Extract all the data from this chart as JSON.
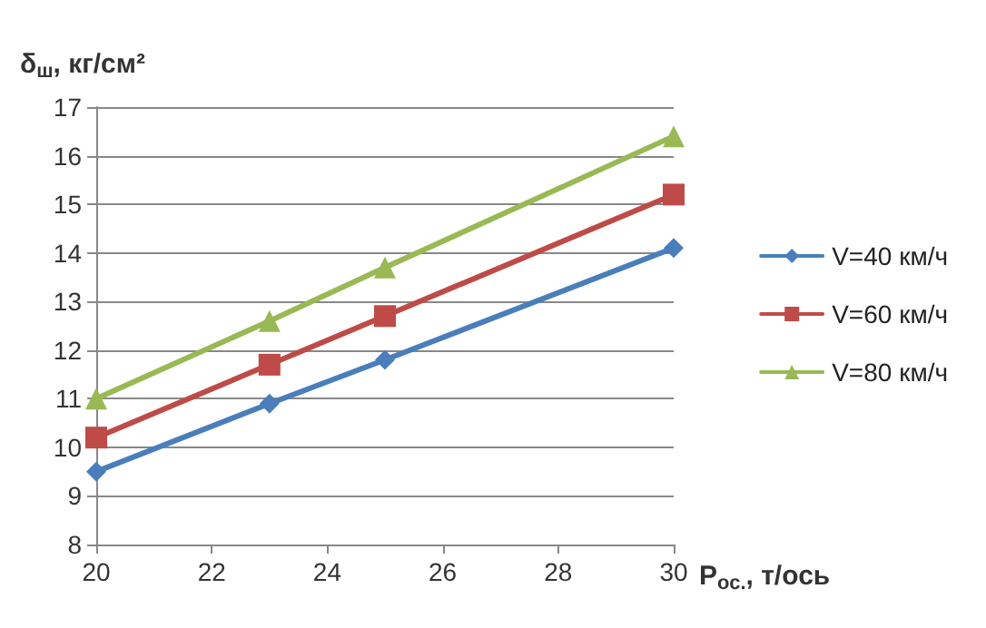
{
  "chart_data": {
    "type": "line",
    "ylabel": "δ$_{ш}$, кг/см²",
    "xlabel": "P$_{ос.}$, т/ось",
    "x": [
      20,
      23,
      25,
      30
    ],
    "xlim": [
      20,
      30
    ],
    "xticks": [
      20,
      22,
      24,
      26,
      28,
      30
    ],
    "ylim": [
      8,
      17
    ],
    "yticks": [
      8,
      9,
      10,
      11,
      12,
      13,
      14,
      15,
      16,
      17
    ],
    "grid": "y",
    "legend": "right",
    "series": [
      {
        "name": "V=40 км/ч",
        "color": "#4a7ebb",
        "marker": "diamond",
        "values": [
          9.5,
          10.9,
          11.8,
          14.1
        ]
      },
      {
        "name": "V=60 км/ч",
        "color": "#be4b48",
        "marker": "square",
        "values": [
          10.2,
          11.7,
          12.7,
          15.2
        ]
      },
      {
        "name": "V=80 км/ч",
        "color": "#98b954",
        "marker": "triangle",
        "values": [
          11.0,
          12.6,
          13.7,
          16.4
        ]
      }
    ]
  }
}
